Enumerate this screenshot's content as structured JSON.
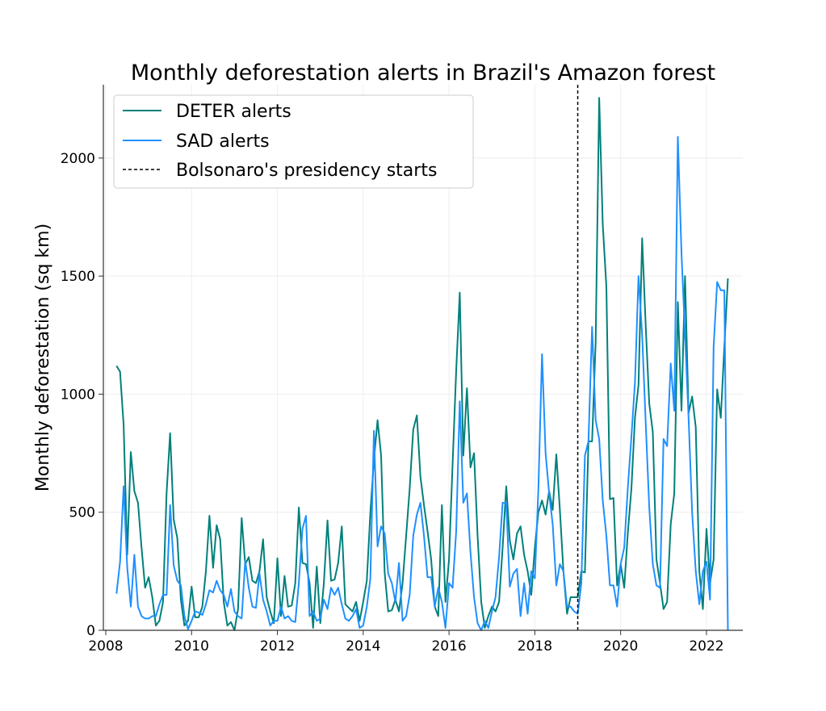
{
  "chart_data": {
    "type": "line",
    "title": "Monthly deforestation alerts in Brazil's Amazon forest",
    "xlabel": "",
    "ylabel": "Monthly deforestation (sq km)",
    "xlim": [
      2008,
      2022.8
    ],
    "ylim": [
      0,
      2300
    ],
    "x_ticks": [
      "2008",
      "2010",
      "2012",
      "2014",
      "2016",
      "2018",
      "2020",
      "2022"
    ],
    "y_ticks": [
      "0",
      "500",
      "1000",
      "1500",
      "2000"
    ],
    "grid": true,
    "legend_position": "top-left",
    "x": [
      "2008-04",
      "2008-05",
      "2008-06",
      "2008-07",
      "2008-08",
      "2008-09",
      "2008-10",
      "2008-11",
      "2008-12",
      "2009-01",
      "2009-02",
      "2009-03",
      "2009-04",
      "2009-05",
      "2009-06",
      "2009-07",
      "2009-08",
      "2009-09",
      "2009-10",
      "2009-11",
      "2009-12",
      "2010-01",
      "2010-02",
      "2010-03",
      "2010-04",
      "2010-05",
      "2010-06",
      "2010-07",
      "2010-08",
      "2010-09",
      "2010-10",
      "2010-11",
      "2010-12",
      "2011-01",
      "2011-02",
      "2011-03",
      "2011-04",
      "2011-05",
      "2011-06",
      "2011-07",
      "2011-08",
      "2011-09",
      "2011-10",
      "2011-11",
      "2011-12",
      "2012-01",
      "2012-02",
      "2012-03",
      "2012-04",
      "2012-05",
      "2012-06",
      "2012-07",
      "2012-08",
      "2012-09",
      "2012-10",
      "2012-11",
      "2012-12",
      "2013-01",
      "2013-02",
      "2013-03",
      "2013-04",
      "2013-05",
      "2013-06",
      "2013-07",
      "2013-08",
      "2013-09",
      "2013-10",
      "2013-11",
      "2013-12",
      "2014-01",
      "2014-02",
      "2014-03",
      "2014-04",
      "2014-05",
      "2014-06",
      "2014-07",
      "2014-08",
      "2014-09",
      "2014-10",
      "2014-11",
      "2014-12",
      "2015-01",
      "2015-02",
      "2015-03",
      "2015-04",
      "2015-05",
      "2015-06",
      "2015-07",
      "2015-08",
      "2015-09",
      "2015-10",
      "2015-11",
      "2015-12",
      "2016-01",
      "2016-02",
      "2016-03",
      "2016-04",
      "2016-05",
      "2016-06",
      "2016-07",
      "2016-08",
      "2016-09",
      "2016-10",
      "2016-11",
      "2016-12",
      "2017-01",
      "2017-02",
      "2017-03",
      "2017-04",
      "2017-05",
      "2017-06",
      "2017-07",
      "2017-08",
      "2017-09",
      "2017-10",
      "2017-11",
      "2017-12",
      "2018-01",
      "2018-02",
      "2018-03",
      "2018-04",
      "2018-05",
      "2018-06",
      "2018-07",
      "2018-08",
      "2018-09",
      "2018-10",
      "2018-11",
      "2018-12",
      "2019-01",
      "2019-02",
      "2019-03",
      "2019-04",
      "2019-05",
      "2019-06",
      "2019-07",
      "2019-08",
      "2019-09",
      "2019-10",
      "2019-11",
      "2019-12",
      "2020-01",
      "2020-02",
      "2020-03",
      "2020-04",
      "2020-05",
      "2020-06",
      "2020-07",
      "2020-08",
      "2020-09",
      "2020-10",
      "2020-11",
      "2020-12",
      "2021-01",
      "2021-02",
      "2021-03",
      "2021-04",
      "2021-05",
      "2021-06",
      "2021-07",
      "2021-08",
      "2021-09",
      "2021-10",
      "2021-11",
      "2021-12",
      "2022-01",
      "2022-02",
      "2022-03",
      "2022-04",
      "2022-05",
      "2022-06",
      "2022-07"
    ],
    "series": [
      {
        "name": "DETER alerts",
        "color": "#00807a",
        "values": [
          1120,
          1095,
          870,
          320,
          755,
          590,
          540,
          350,
          180,
          225,
          140,
          20,
          40,
          120,
          580,
          835,
          470,
          390,
          130,
          20,
          40,
          185,
          55,
          55,
          100,
          250,
          485,
          265,
          445,
          385,
          120,
          20,
          35,
          0,
          90,
          475,
          280,
          310,
          210,
          200,
          250,
          385,
          140,
          80,
          30,
          305,
          60,
          230,
          100,
          105,
          200,
          520,
          285,
          280,
          200,
          10,
          270,
          30,
          200,
          465,
          210,
          215,
          285,
          440,
          110,
          95,
          80,
          120,
          40,
          120,
          210,
          500,
          720,
          890,
          740,
          245,
          80,
          85,
          130,
          80,
          200,
          400,
          600,
          850,
          910,
          650,
          530,
          420,
          300,
          100,
          60,
          530,
          120,
          300,
          700,
          1100,
          1430,
          740,
          1025,
          690,
          750,
          400,
          120,
          10,
          60,
          100,
          80,
          120,
          350,
          610,
          380,
          300,
          410,
          440,
          320,
          250,
          150,
          350,
          500,
          550,
          490,
          590,
          510,
          745,
          510,
          250,
          70,
          140,
          140,
          140,
          250,
          245,
          800,
          800,
          1220,
          2255,
          1720,
          1455,
          555,
          560,
          190,
          280,
          180,
          410,
          600,
          900,
          1040,
          1660,
          1290,
          960,
          840,
          300,
          200,
          90,
          120,
          450,
          580,
          1390,
          930,
          1500,
          920,
          990,
          860,
          250,
          90,
          430,
          200,
          300,
          1020,
          900,
          1200,
          1490
        ]
      },
      {
        "name": "SAD alerts",
        "color": "#1e90ff",
        "values": [
          155,
          290,
          610,
          265,
          100,
          320,
          100,
          60,
          50,
          50,
          60,
          60,
          110,
          150,
          150,
          530,
          275,
          210,
          190,
          60,
          5,
          40,
          80,
          75,
          65,
          110,
          170,
          160,
          210,
          170,
          150,
          100,
          175,
          80,
          60,
          50,
          295,
          180,
          100,
          95,
          240,
          130,
          80,
          20,
          40,
          40,
          100,
          50,
          60,
          40,
          35,
          200,
          430,
          485,
          60,
          80,
          40,
          50,
          130,
          90,
          180,
          150,
          180,
          110,
          50,
          40,
          60,
          90,
          10,
          20,
          100,
          220,
          845,
          355,
          440,
          410,
          240,
          200,
          120,
          285,
          40,
          60,
          150,
          400,
          490,
          540,
          400,
          225,
          225,
          100,
          180,
          120,
          10,
          200,
          180,
          420,
          970,
          540,
          580,
          330,
          140,
          30,
          0,
          40,
          10,
          80,
          140,
          310,
          540,
          540,
          185,
          240,
          260,
          60,
          200,
          70,
          250,
          220,
          600,
          1170,
          750,
          580,
          450,
          190,
          280,
          250,
          100,
          100,
          80,
          70,
          200,
          740,
          800,
          1285,
          890,
          810,
          550,
          400,
          190,
          190,
          100,
          280,
          350,
          600,
          820,
          1050,
          1500,
          1250,
          880,
          520,
          280,
          190,
          180,
          810,
          780,
          1130,
          930,
          2090,
          1600,
          1250,
          900,
          500,
          250,
          110,
          250,
          290,
          130,
          1200,
          1475,
          1440,
          1440,
          0
        ]
      }
    ],
    "annotations": [
      {
        "type": "vertical-dashed-line",
        "x": "2019-01",
        "label": "Bolsonaro's presidency starts",
        "color": "#000000"
      }
    ]
  }
}
